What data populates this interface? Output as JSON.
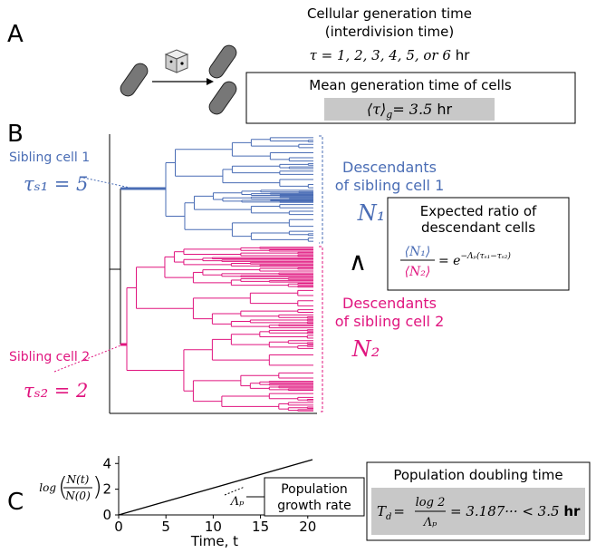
{
  "panel_labels": [
    "A",
    "B",
    "C"
  ],
  "panel_a": {
    "title_lines": [
      "Cellular generation time",
      "(interdivision time)"
    ],
    "tau_options": "τ = 1, 2, 3, 4, 5, or 6",
    "tau_unit": "hr",
    "mean_box_title": "Mean generation time of cells",
    "mean_symbol": "⟨τ⟩",
    "mean_sub": "g",
    "mean_value": "= 3.5",
    "mean_unit": "hr"
  },
  "panel_b": {
    "sibling_1": {
      "label": "Sibling cell 1",
      "formula": "τₛ₁ = 5"
    },
    "sibling_2": {
      "label": "Sibling cell 2",
      "formula": "τₛ₂ = 2"
    },
    "descendants_1": {
      "lines": [
        "Descendants",
        "of sibling cell 1"
      ],
      "symbol": "N₁"
    },
    "descendants_2": {
      "lines": [
        "Descendants",
        "of sibling cell 2"
      ],
      "symbol": "N₂"
    },
    "relation": "∧",
    "ratio_box": {
      "lines": [
        "Expected ratio of",
        "descendant cells"
      ],
      "numerator": "⟨N₁⟩",
      "denominator": "⟨N₂⟩",
      "rhs": "= e",
      "exponent": "−Λₚ(τₛ₁−τₛ₂)"
    }
  },
  "panel_c": {
    "y_label": "log",
    "y_label_num": "N(t)",
    "y_label_den": "N(0)",
    "x_label": "Time, t",
    "slope_label": "Λₚ",
    "growth_box": [
      "Population",
      "growth rate"
    ],
    "doubling_box": {
      "title": "Population doubling time",
      "lhs": "T",
      "lhs_sub": "d",
      "eq": "=",
      "num": "log 2",
      "den": "Λₚ",
      "rest": "= 3.187··· < 3.5",
      "unit": "hr"
    },
    "chart": {
      "type": "line",
      "xlim": [
        0,
        20.5
      ],
      "ylim": [
        0,
        4.3
      ],
      "xticks": [
        0,
        5,
        10,
        15,
        20
      ],
      "yticks": [
        0,
        2,
        4
      ],
      "x": [
        0,
        20.5
      ],
      "y": [
        0,
        4.3
      ]
    }
  }
}
